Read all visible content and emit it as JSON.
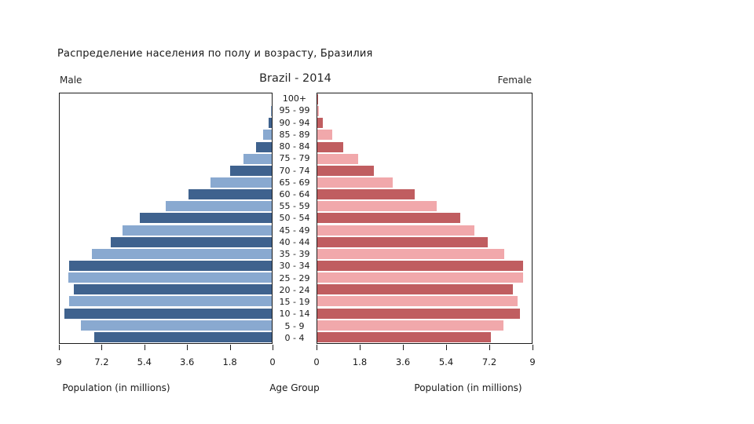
{
  "page_title": "Распределение населения по полу и возрасту, Бразилия",
  "header": {
    "male_label": "Male",
    "chart_title": "Brazil - 2014",
    "female_label": "Female"
  },
  "footer": {
    "left_axis_label": "Population (in millions)",
    "center_axis_label": "Age Group",
    "right_axis_label": "Population (in millions)"
  },
  "chart_data": {
    "type": "bar",
    "subtype": "population-pyramid",
    "title": "Brazil - 2014",
    "xlabel_left": "Population (in millions)",
    "xlabel_center": "Age Group",
    "xlabel_right": "Population (in millions)",
    "xlim": [
      0,
      9
    ],
    "grid": false,
    "age_groups": [
      "100+",
      "95 - 99",
      "90 - 94",
      "85 - 89",
      "80 - 84",
      "75 - 79",
      "70 - 74",
      "65 - 69",
      "60 - 64",
      "55 - 59",
      "50 - 54",
      "45 - 49",
      "40 - 44",
      "35 - 39",
      "30 - 34",
      "25 - 29",
      "20 - 24",
      "15 - 19",
      "10 - 14",
      "5 - 9",
      "0 - 4"
    ],
    "series": [
      {
        "name": "Male",
        "values": [
          0.01,
          0.03,
          0.15,
          0.36,
          0.67,
          1.2,
          1.77,
          2.6,
          3.55,
          4.5,
          5.6,
          6.35,
          6.85,
          7.65,
          8.6,
          8.65,
          8.4,
          8.6,
          8.8,
          8.1,
          7.55
        ]
      },
      {
        "name": "Female",
        "values": [
          0.02,
          0.05,
          0.22,
          0.62,
          1.08,
          1.72,
          2.36,
          3.15,
          4.1,
          5.0,
          6.0,
          6.6,
          7.15,
          7.85,
          8.65,
          8.65,
          8.2,
          8.4,
          8.5,
          7.8,
          7.3
        ]
      }
    ],
    "x_ticks_male": [
      "9",
      "7.2",
      "5.4",
      "3.6",
      "1.8",
      "0"
    ],
    "x_ticks_female": [
      "0",
      "1.8",
      "3.6",
      "5.4",
      "7.2",
      "9"
    ],
    "colors": {
      "male_dark": "#3f628e",
      "male_light": "#89a9d0",
      "female_dark": "#c05d60",
      "female_light": "#f1a8ab",
      "axis": "#1c1c1c",
      "text": "#262626"
    }
  }
}
